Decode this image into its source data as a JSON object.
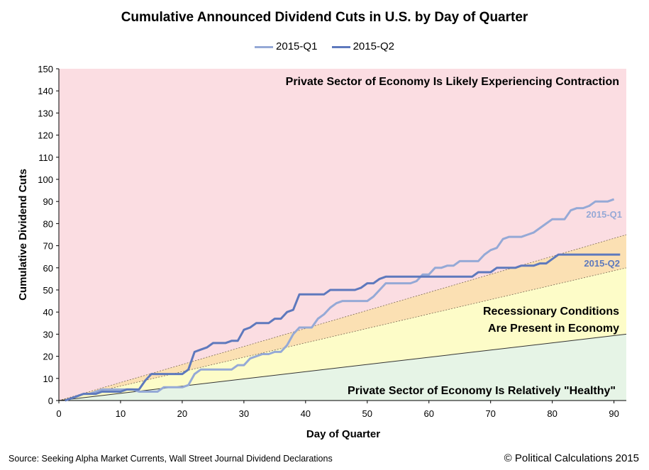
{
  "title": "Cumulative Announced Dividend Cuts in U.S. by Day of Quarter",
  "source": "Source: Seeking Alpha Market Currents, Wall Street Journal Dividend Declarations",
  "copyright": "© Political Calculations 2015",
  "colors": {
    "q1": "#95a9d6",
    "q2": "#5e79bd",
    "zone_contraction": "#fbdde2",
    "zone_orange": "#fbe0b3",
    "zone_recession": "#fdfcc8",
    "zone_healthy": "#e6f4e6"
  },
  "chart_data": {
    "type": "line",
    "title": "Cumulative Announced Dividend Cuts in U.S. by Day of Quarter",
    "xlabel": "Day of Quarter",
    "ylabel": "Cumulative Dividend Cuts",
    "xlim": [
      0,
      92
    ],
    "ylim": [
      0,
      150
    ],
    "xticks": [
      "0",
      "10",
      "20",
      "30",
      "40",
      "50",
      "60",
      "70",
      "80",
      "90"
    ],
    "yticks": [
      "0",
      "10",
      "20",
      "30",
      "40",
      "50",
      "60",
      "70",
      "80",
      "90",
      "100",
      "110",
      "120",
      "130",
      "140",
      "150"
    ],
    "grid": false,
    "legend": "top-center",
    "zones": {
      "contraction_label": "Private Sector of Economy Is Likely Experiencing Contraction",
      "recession_label_line1": "Recessionary Conditions",
      "recession_label_line2": "Are Present in Economy",
      "healthy_label": "Private Sector of Economy Is Relatively \"Healthy\"",
      "boundary_slopes": [
        0.326,
        0.652,
        0.815
      ]
    },
    "series": [
      {
        "name": "2015-Q1",
        "end_label": "2015-Q1",
        "x": [
          1,
          2,
          3,
          4,
          5,
          6,
          7,
          8,
          9,
          10,
          11,
          12,
          13,
          14,
          15,
          16,
          17,
          18,
          19,
          20,
          21,
          22,
          23,
          24,
          25,
          26,
          27,
          28,
          29,
          30,
          31,
          32,
          33,
          34,
          35,
          36,
          37,
          38,
          39,
          40,
          41,
          42,
          43,
          44,
          45,
          46,
          47,
          48,
          49,
          50,
          51,
          52,
          53,
          54,
          55,
          56,
          57,
          58,
          59,
          60,
          61,
          62,
          63,
          64,
          65,
          66,
          67,
          68,
          69,
          70,
          71,
          72,
          73,
          74,
          75,
          76,
          77,
          78,
          79,
          80,
          81,
          82,
          83,
          84,
          85,
          86,
          87,
          88,
          89,
          90
        ],
        "y": [
          0,
          1,
          2,
          3,
          3,
          4,
          5,
          5,
          5,
          5,
          5,
          5,
          4,
          4,
          4,
          4,
          6,
          6,
          6,
          6,
          7,
          12,
          14,
          14,
          14,
          14,
          14,
          14,
          16,
          16,
          19,
          20,
          21,
          21,
          22,
          22,
          25,
          30,
          33,
          33,
          33,
          37,
          39,
          42,
          44,
          45,
          45,
          45,
          45,
          45,
          47,
          50,
          53,
          53,
          53,
          53,
          53,
          54,
          57,
          57,
          60,
          60,
          61,
          61,
          63,
          63,
          63,
          63,
          66,
          68,
          69,
          73,
          74,
          74,
          74,
          75,
          76,
          78,
          80,
          82,
          82,
          82,
          86,
          87,
          87,
          88,
          90,
          90,
          90,
          91
        ]
      },
      {
        "name": "2015-Q2",
        "end_label": "2015-Q2",
        "x": [
          1,
          2,
          3,
          4,
          5,
          6,
          7,
          8,
          9,
          10,
          11,
          12,
          13,
          14,
          15,
          16,
          17,
          18,
          19,
          20,
          21,
          22,
          23,
          24,
          25,
          26,
          27,
          28,
          29,
          30,
          31,
          32,
          33,
          34,
          35,
          36,
          37,
          38,
          39,
          40,
          41,
          42,
          43,
          44,
          45,
          46,
          47,
          48,
          49,
          50,
          51,
          52,
          53,
          54,
          55,
          56,
          57,
          58,
          59,
          60,
          61,
          62,
          63,
          64,
          65,
          66,
          67,
          68,
          69,
          70,
          71,
          72,
          73,
          74,
          75,
          76,
          77,
          78,
          79,
          80,
          81,
          82,
          83,
          84,
          85,
          86,
          87,
          88,
          89,
          90,
          91
        ],
        "y": [
          0,
          1,
          2,
          3,
          3,
          3,
          4,
          4,
          4,
          4,
          5,
          5,
          5,
          9,
          12,
          12,
          12,
          12,
          12,
          12,
          14,
          22,
          23,
          24,
          26,
          26,
          26,
          27,
          27,
          32,
          33,
          35,
          35,
          35,
          37,
          37,
          40,
          41,
          48,
          48,
          48,
          48,
          48,
          50,
          50,
          50,
          50,
          50,
          51,
          53,
          53,
          55,
          56,
          56,
          56,
          56,
          56,
          56,
          56,
          56,
          56,
          56,
          56,
          56,
          56,
          56,
          56,
          58,
          58,
          58,
          60,
          60,
          60,
          60,
          61,
          61,
          61,
          62,
          62,
          64,
          66,
          66,
          66,
          66,
          66,
          66,
          66,
          66,
          66,
          66,
          66
        ]
      }
    ]
  }
}
